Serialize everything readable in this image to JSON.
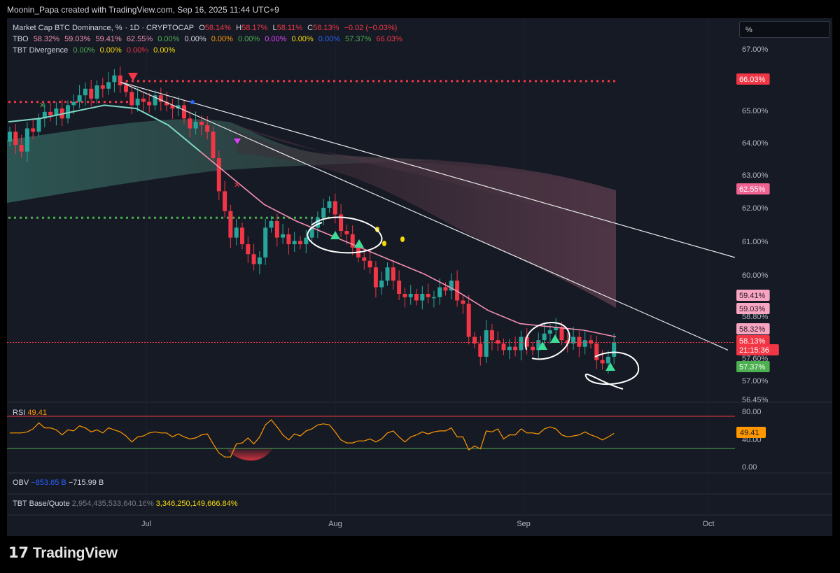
{
  "credit": "Moonin_Papa created with TradingView.com, Sep 16, 2025 11:44 UTC+9",
  "unit_selector": "%",
  "watermark": "TradingView",
  "legend": {
    "main": {
      "title": "Market Cap BTC Dominance, %",
      "interval": "· 1D · CRYPTOCAP",
      "o_label": "O",
      "o": "58.14%",
      "h_label": "H",
      "h": "58.17%",
      "l_label": "L",
      "l": "58.11%",
      "c_label": "C",
      "c": "58.13%",
      "change": "−0.02 (−0.03%)"
    },
    "tbo": {
      "name": "TBO",
      "values": [
        "58.32%",
        "59.03%",
        "59.41%",
        "62.55%",
        "0.00%",
        "0.00%",
        "0.00%",
        "0.00%",
        "0.00%",
        "0.00%",
        "0.00%",
        "57.37%",
        "66.03%"
      ]
    },
    "tbt_div": {
      "name": "TBT Divergence",
      "values": [
        "0.00%",
        "0.00%",
        "0.00%",
        "0.00%"
      ]
    }
  },
  "price_badges": [
    {
      "text": "66.03%",
      "color": "#f23645"
    },
    {
      "text": "62.55%",
      "color": "#f06292"
    },
    {
      "text": "59.41%",
      "color": "#f8a5c2"
    },
    {
      "text": "59.03%",
      "color": "#f8a5c2"
    },
    {
      "text": "58.32%",
      "color": "#f8a5c2"
    },
    {
      "text": "58.13%",
      "color": "#f23645"
    },
    {
      "text": "21:15:36",
      "color": "#f23645"
    },
    {
      "text": "57.37%",
      "color": "#4caf50"
    }
  ],
  "rsi": {
    "name": "RSI",
    "value": "49.41",
    "ticks": [
      "80.00",
      "40.00",
      "0.00"
    ]
  },
  "obv": {
    "name": "OBV",
    "v1": "−853.65 B",
    "v2": "−715.99 B"
  },
  "tbt_base_quote": {
    "name": "TBT Base/Quote",
    "v1": "2,954,435,533,640.16%",
    "v2": "3,346,250,149,666.84%"
  },
  "chart_data": {
    "type": "candlestick",
    "title": "Market Cap BTC Dominance, %",
    "x_ticks": [
      "Jul",
      "Aug",
      "Sep",
      "Oct"
    ],
    "y_ticks": [
      "67.00%",
      "65.00%",
      "64.00%",
      "63.00%",
      "62.00%",
      "61.00%",
      "60.00%",
      "58.80%",
      "57.60%",
      "57.00%",
      "56.45%"
    ],
    "ylim": [
      56.45,
      67.3
    ],
    "last_close": 58.13,
    "closes": [
      64.5,
      64.1,
      63.9,
      64.6,
      64.5,
      64.9,
      65.1,
      65.0,
      65.2,
      64.9,
      65.3,
      65.4,
      65.6,
      65.8,
      65.5,
      65.9,
      65.8,
      66.0,
      66.2,
      65.9,
      65.7,
      65.3,
      65.5,
      65.4,
      65.3,
      65.6,
      65.4,
      65.3,
      65.2,
      65.3,
      64.9,
      64.6,
      64.8,
      64.7,
      64.5,
      63.7,
      62.7,
      62.1,
      61.3,
      61.6,
      61.1,
      60.8,
      60.5,
      60.7,
      61.6,
      61.8,
      61.3,
      61.4,
      61.1,
      61.2,
      61.1,
      61.3,
      61.6,
      61.9,
      62.2,
      62.4,
      62.0,
      61.5,
      61.4,
      61.0,
      60.7,
      60.6,
      60.4,
      59.8,
      60.0,
      60.4,
      60.0,
      59.6,
      59.5,
      59.6,
      59.4,
      59.6,
      59.5,
      59.5,
      59.8,
      59.7,
      60.0,
      59.4,
      59.3,
      58.3,
      58.1,
      57.7,
      58.5,
      58.2,
      58.1,
      57.9,
      58.0,
      57.9,
      58.3,
      58.0,
      57.9,
      58.2,
      58.4,
      58.5,
      58.6,
      58.2,
      58.1,
      58.3,
      58.0,
      58.2,
      58.1,
      57.6,
      57.5,
      57.7,
      58.13
    ],
    "ema_ribbon_line": [
      64.8,
      64.9,
      65.1,
      65.3,
      65.2,
      64.7,
      63.9,
      63.1,
      62.3,
      61.8,
      61.4,
      61.0,
      60.6,
      60.2,
      59.7,
      59.1,
      58.7,
      58.6,
      58.5,
      58.3
    ],
    "trendlines": [
      {
        "from": [
          "Jun 22",
          66.0
        ],
        "to": [
          "Sep 30",
          60.7
        ]
      },
      {
        "from": [
          "Jun 22",
          66.0
        ],
        "to": [
          "Sep 30",
          57.9
        ]
      }
    ],
    "levels": [
      {
        "name": "resistance-dotted",
        "value": 66.03
      },
      {
        "name": "support-dotted-left",
        "value": 65.4
      },
      {
        "name": "support-dotted-mid",
        "value": 61.9
      }
    ],
    "rsi_range": [
      0,
      80
    ],
    "rsi_last": 49.41
  }
}
